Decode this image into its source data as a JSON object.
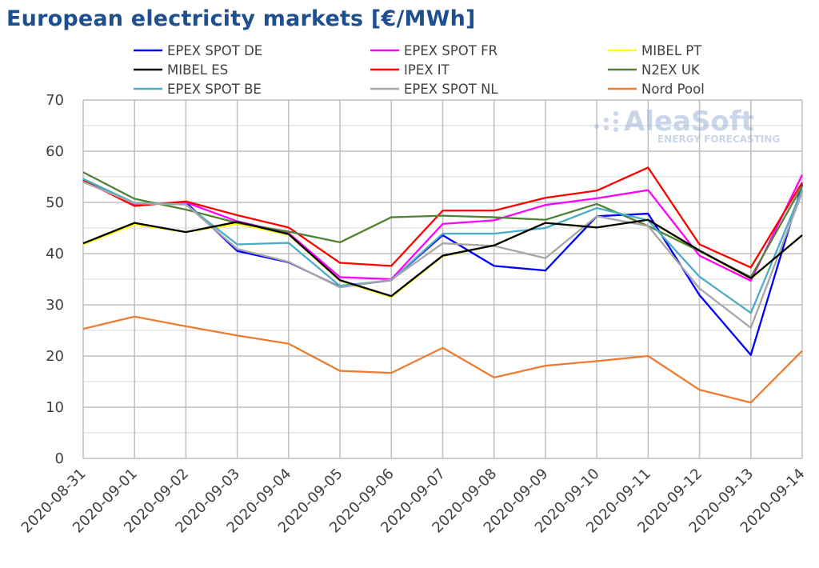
{
  "chart_data": {
    "type": "line",
    "title": "European electricity markets [€/MWh]",
    "x": [
      "2020-08-31",
      "2020-09-01",
      "2020-09-02",
      "2020-09-03",
      "2020-09-04",
      "2020-09-05",
      "2020-09-06",
      "2020-09-07",
      "2020-09-08",
      "2020-09-09",
      "2020-09-10",
      "2020-09-11",
      "2020-09-12",
      "2020-09-13",
      "2020-09-14"
    ],
    "ylim": [
      0,
      70
    ],
    "yticks": [
      0,
      10,
      20,
      30,
      40,
      50,
      60,
      70
    ],
    "grid": true,
    "legend_position": "top",
    "series": [
      {
        "name": "EPEX SPOT DE",
        "color": "#0000ff",
        "values": [
          54.3,
          49.5,
          50.0,
          40.5,
          38.3,
          33.5,
          34.8,
          43.6,
          37.6,
          36.7,
          47.3,
          47.8,
          31.9,
          20.2,
          53.5
        ]
      },
      {
        "name": "EPEX SPOT FR",
        "color": "#ff00ff",
        "values": [
          54.3,
          49.5,
          50.0,
          46.3,
          44.0,
          35.4,
          35.0,
          45.8,
          46.5,
          49.5,
          50.8,
          52.4,
          39.6,
          34.7,
          55.4
        ]
      },
      {
        "name": "MIBEL PT",
        "color": "#ffff00",
        "values": [
          41.8,
          45.7,
          44.2,
          45.8,
          43.7,
          34.7,
          31.5,
          39.5,
          41.6,
          46.0,
          45.1,
          46.6,
          40.5,
          35.1,
          43.6
        ]
      },
      {
        "name": "MIBEL ES",
        "color": "#000000",
        "values": [
          42.0,
          46.0,
          44.2,
          46.2,
          43.8,
          34.8,
          31.7,
          39.6,
          41.6,
          46.0,
          45.1,
          46.6,
          40.6,
          35.2,
          43.6
        ]
      },
      {
        "name": "IPEX IT",
        "color": "#ff0000",
        "values": [
          54.3,
          49.3,
          50.2,
          47.5,
          45.1,
          38.2,
          37.6,
          48.4,
          48.4,
          50.9,
          52.3,
          56.8,
          41.8,
          37.3,
          53.9
        ]
      },
      {
        "name": "N2EX UK",
        "color": "#548235",
        "values": [
          55.9,
          50.7,
          48.6,
          46.0,
          44.3,
          42.2,
          47.1,
          47.4,
          47.1,
          46.6,
          49.7,
          45.4,
          40.5,
          35.4,
          53.2
        ]
      },
      {
        "name": "EPEX SPOT BE",
        "color": "#4bacc6",
        "values": [
          54.6,
          49.9,
          49.6,
          41.8,
          42.1,
          33.7,
          34.8,
          43.9,
          43.9,
          45.0,
          48.9,
          46.5,
          35.5,
          28.4,
          52.5
        ]
      },
      {
        "name": "EPEX SPOT NL",
        "color": "#a6a6a6",
        "values": [
          54.0,
          49.8,
          49.6,
          40.9,
          38.4,
          33.4,
          34.9,
          42.0,
          41.5,
          39.1,
          47.3,
          45.4,
          33.2,
          25.5,
          52.0
        ]
      },
      {
        "name": "Nord Pool",
        "color": "#ed7d31",
        "values": [
          25.3,
          27.7,
          25.8,
          24.0,
          22.4,
          17.1,
          16.7,
          21.6,
          15.8,
          18.1,
          19.0,
          20.0,
          13.4,
          10.9,
          21.0
        ]
      }
    ]
  },
  "logo": {
    "name": "AleaSoft",
    "tagline": "ENERGY FORECASTING"
  }
}
